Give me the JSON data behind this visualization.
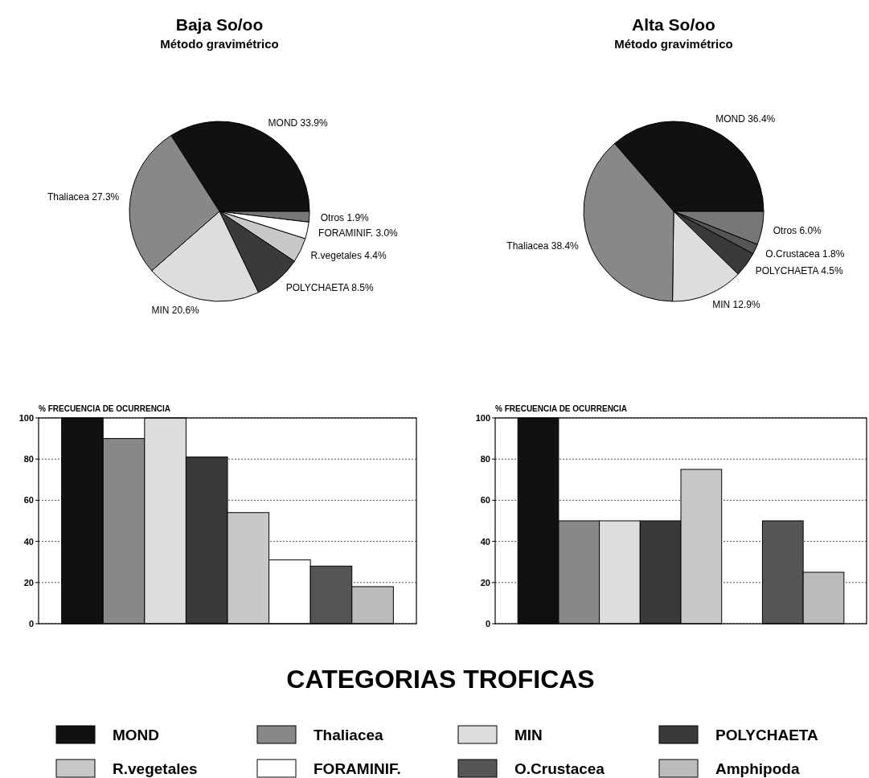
{
  "chart_data": [
    {
      "type": "pie",
      "title": "Baja So/oo",
      "subtitle": "Método gravimétrico",
      "categories": [
        "MOND",
        "Otros",
        "FORAMINIF.",
        "R.vegetales",
        "POLYCHAETA",
        "MIN",
        "Thaliacea"
      ],
      "values": [
        33.9,
        1.9,
        3.0,
        4.4,
        8.5,
        20.6,
        27.3
      ],
      "value_labels": [
        "33.9%",
        "1.9%",
        "3.0%",
        "4.4%",
        "8.5%",
        "20.6%",
        "27.3%"
      ],
      "colors": [
        "#111111",
        "#777777",
        "#ffffff",
        "#c8c8c8",
        "#3a3a3a",
        "#dddddd",
        "#888888"
      ]
    },
    {
      "type": "pie",
      "title": "Alta So/oo",
      "subtitle": "Método gravimétrico",
      "categories": [
        "MOND",
        "Otros",
        "O.Crustacea",
        "POLYCHAETA",
        "MIN",
        "Thaliacea"
      ],
      "values": [
        36.4,
        6.0,
        1.8,
        4.5,
        12.9,
        38.4
      ],
      "value_labels": [
        "36.4%",
        "6.0%",
        "1.8%",
        "4.5%",
        "12.9%",
        "38.4%"
      ],
      "colors": [
        "#111111",
        "#777777",
        "#555555",
        "#3a3a3a",
        "#dddddd",
        "#888888"
      ]
    },
    {
      "type": "bar",
      "ylabel": "% FRECUENCIA DE OCURRENCIA",
      "legend_title": "CATEGORIAS TROFICAS",
      "legend": "bottom",
      "grid": "y",
      "categories": [
        null
      ],
      "ylim": [
        0,
        100
      ],
      "yticks": [
        0,
        20,
        40,
        60,
        80,
        100
      ],
      "series": [
        {
          "name": "MOND",
          "color": "#111111",
          "values": [
            100
          ]
        },
        {
          "name": "Thaliacea",
          "color": "#888888",
          "values": [
            90
          ]
        },
        {
          "name": "MIN",
          "color": "#dddddd",
          "values": [
            100
          ]
        },
        {
          "name": "POLYCHAETA",
          "color": "#3a3a3a",
          "values": [
            81
          ]
        },
        {
          "name": "R.vegetales",
          "color": "#c8c8c8",
          "values": [
            54
          ]
        },
        {
          "name": "FORAMINIF.",
          "color": "#ffffff",
          "values": [
            31
          ]
        },
        {
          "name": "O.Crustacea",
          "color": "#555555",
          "values": [
            28
          ]
        },
        {
          "name": "Amphipoda",
          "color": "#bbbbbb",
          "values": [
            18
          ]
        }
      ]
    },
    {
      "type": "bar",
      "ylabel": "% FRECUENCIA DE OCURRENCIA",
      "grid": "y",
      "categories": [
        null
      ],
      "ylim": [
        0,
        100
      ],
      "yticks": [
        0,
        20,
        40,
        60,
        80,
        100
      ],
      "series": [
        {
          "color": "#111111",
          "values": [
            100
          ]
        },
        {
          "color": "#888888",
          "values": [
            50
          ]
        },
        {
          "color": "#dddddd",
          "values": [
            50
          ]
        },
        {
          "color": "#3a3a3a",
          "values": [
            50
          ]
        },
        {
          "color": "#c8c8c8",
          "values": [
            75
          ]
        },
        {
          "values": [
            null
          ]
        },
        {
          "color": "#555555",
          "values": [
            50
          ]
        },
        {
          "color": "#bbbbbb",
          "values": [
            25
          ]
        }
      ]
    }
  ]
}
